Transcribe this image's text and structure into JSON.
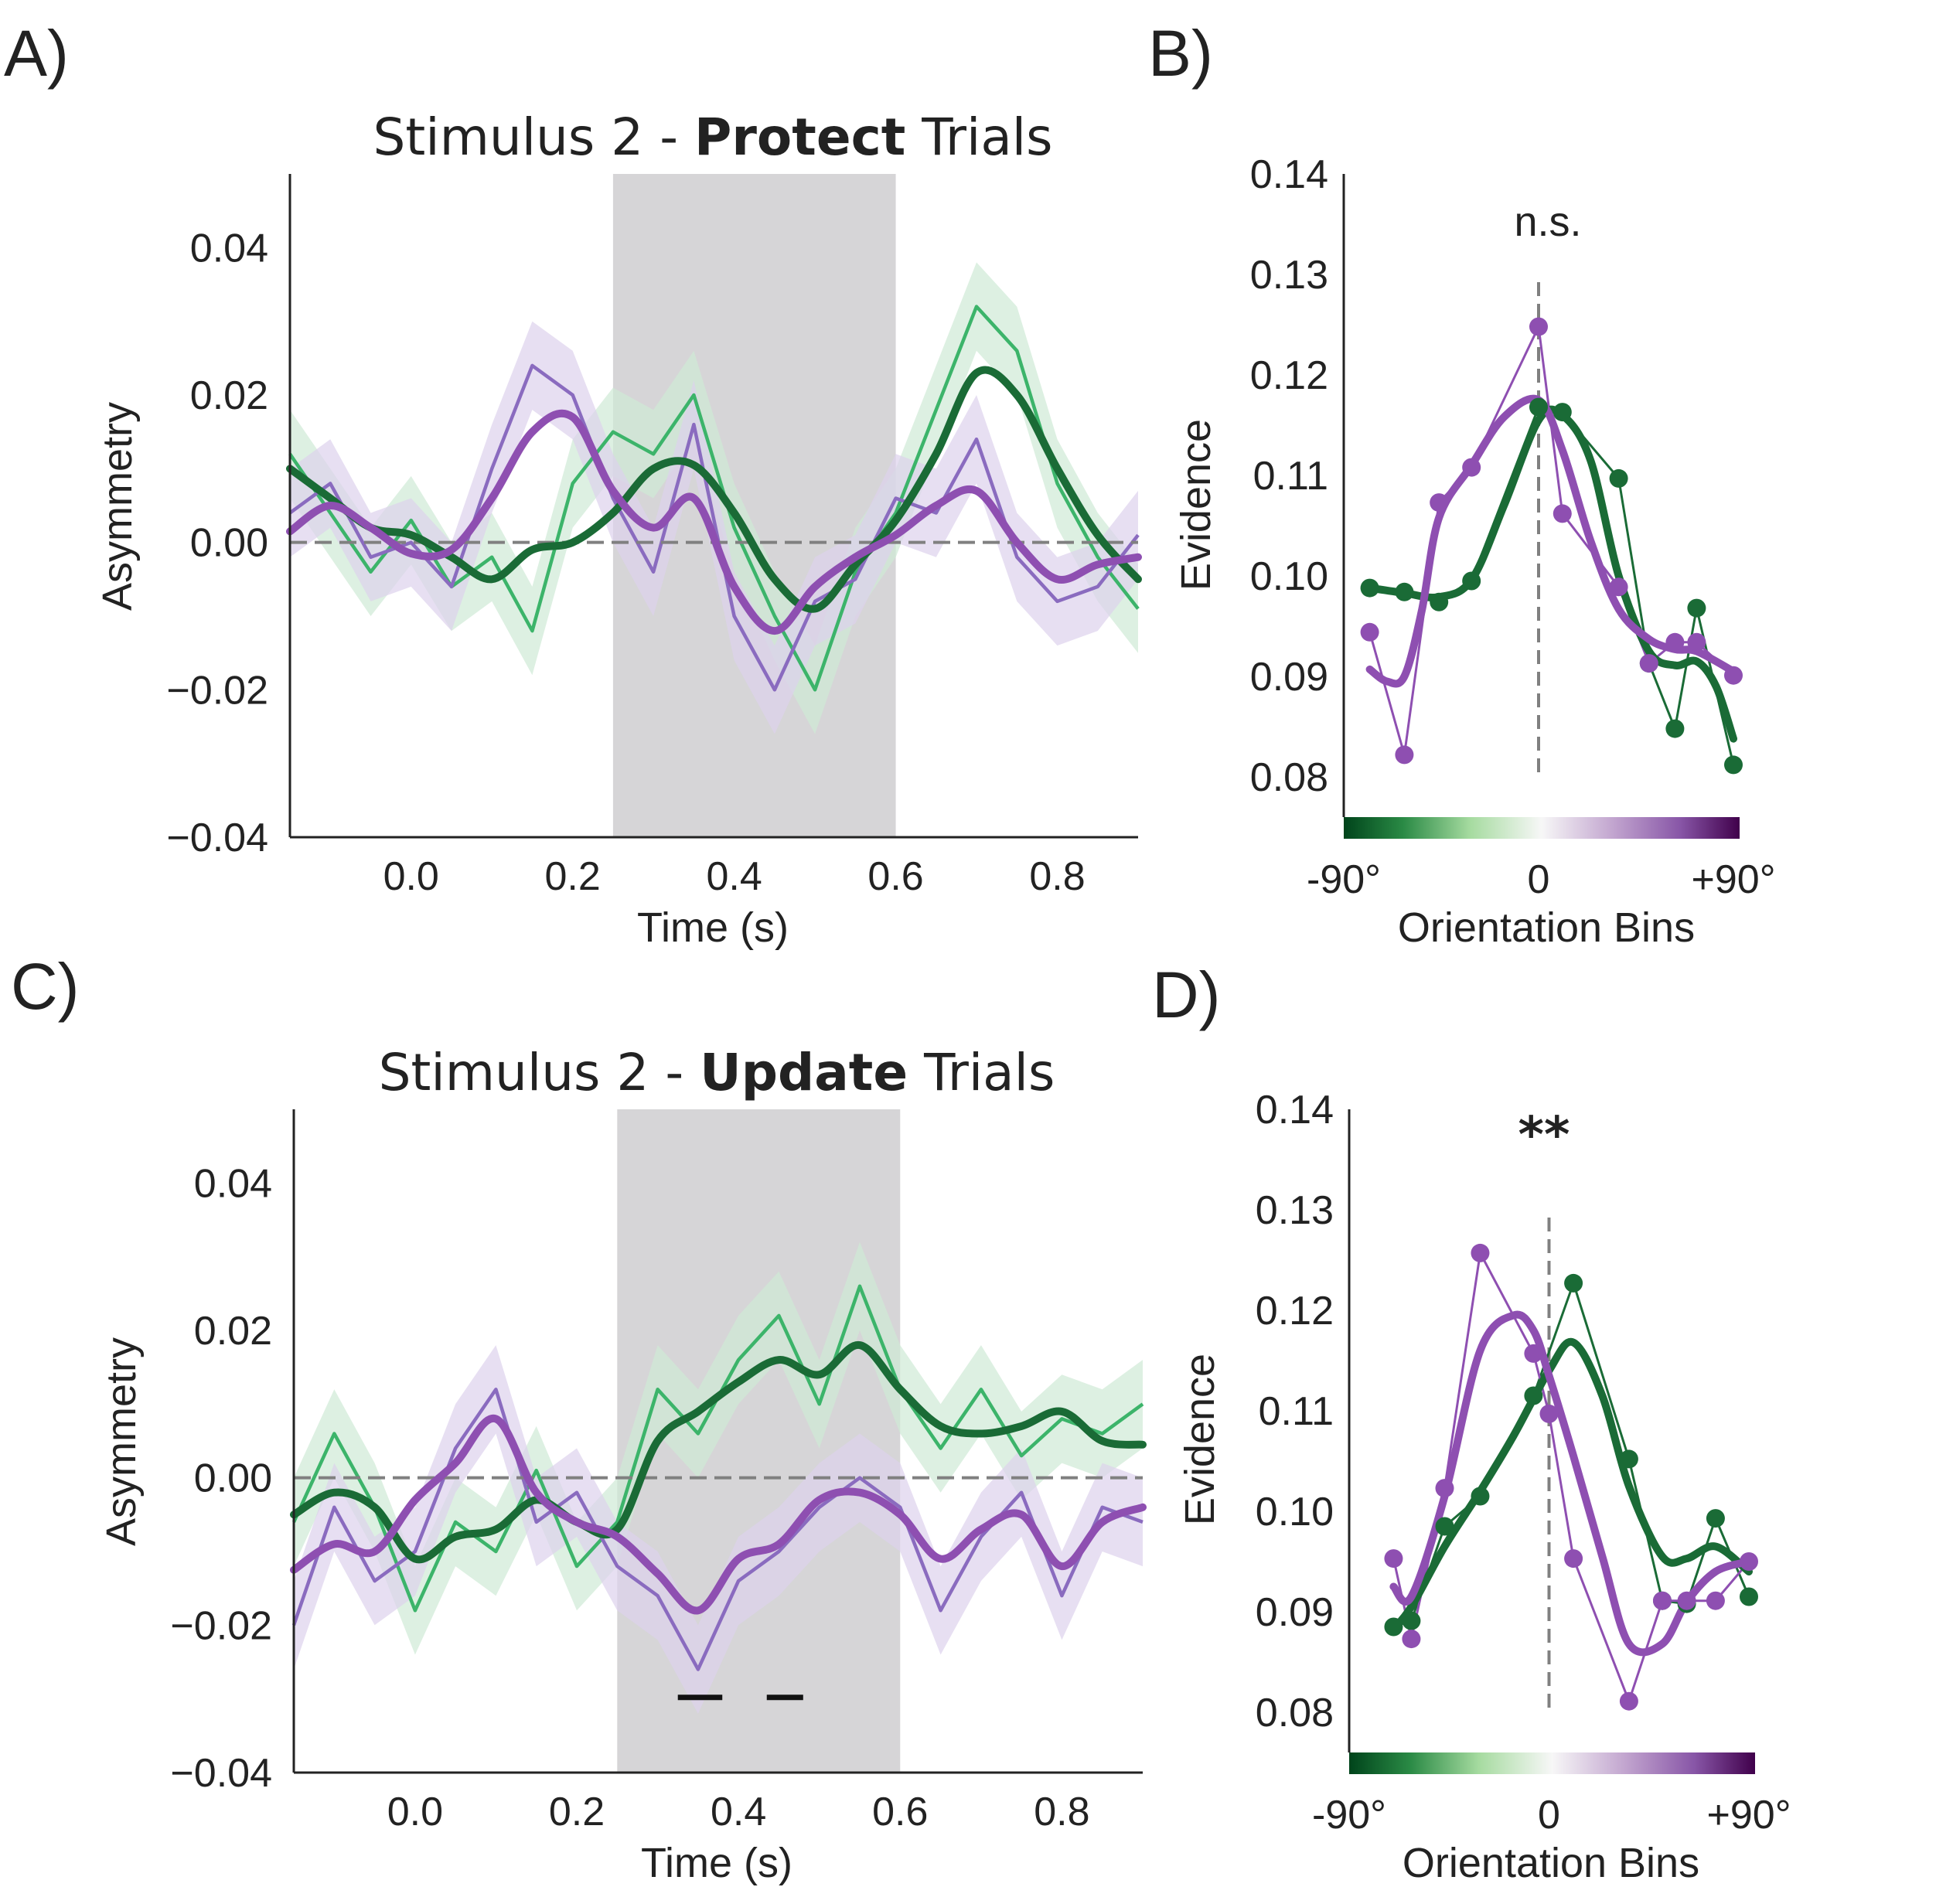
{
  "panels": {
    "A": {
      "letter": "A)"
    },
    "B": {
      "letter": "B)"
    },
    "C": {
      "letter": "C)"
    },
    "D": {
      "letter": "D)"
    }
  },
  "colors": {
    "dark_green": "#1a6b36",
    "light_green": "#3cb46a",
    "green_band": "#cfe9d6",
    "purple": "#8e4fb1",
    "light_purple": "#8a6bbf",
    "purple_band": "#ddd2ec",
    "shade": "#d6d5d7",
    "zero_line": "#808080",
    "axis": "#222222"
  },
  "chart_data": [
    {
      "id": "A",
      "type": "line",
      "title_pre": "Stimulus 2 - ",
      "title_bold": "Protect",
      "title_post": " Trials",
      "xlabel": "Time (s)",
      "ylabel": "Asymmetry",
      "xlim": [
        -0.15,
        0.9
      ],
      "ylim": [
        -0.04,
        0.05
      ],
      "xticks": [
        "0.0",
        "0.2",
        "0.4",
        "0.6",
        "0.8"
      ],
      "yticks": [
        "−0.04",
        "−0.02",
        "0.00",
        "0.02",
        "0.04"
      ],
      "xtick_values": [
        0.0,
        0.2,
        0.4,
        0.6,
        0.8
      ],
      "ytick_values": [
        -0.04,
        -0.02,
        0.0,
        0.02,
        0.04
      ],
      "shaded_interval": [
        0.25,
        0.6
      ],
      "zero_line": 0.0,
      "significance_bars": [],
      "smooth_series": [
        {
          "color_key": "dark_green",
          "x": [
            -0.15,
            -0.1,
            -0.05,
            0.0,
            0.05,
            0.1,
            0.15,
            0.2,
            0.25,
            0.3,
            0.35,
            0.4,
            0.45,
            0.5,
            0.55,
            0.6,
            0.65,
            0.7,
            0.75,
            0.8,
            0.85,
            0.9
          ],
          "y": [
            0.01,
            0.006,
            0.002,
            0.001,
            -0.002,
            -0.005,
            -0.001,
            0.0,
            0.004,
            0.01,
            0.0105,
            0.004,
            -0.005,
            -0.009,
            -0.003,
            0.003,
            0.012,
            0.023,
            0.02,
            0.01,
            0.001,
            -0.005
          ]
        },
        {
          "color_key": "purple",
          "x": [
            -0.15,
            -0.1,
            -0.05,
            0.0,
            0.05,
            0.1,
            0.15,
            0.2,
            0.25,
            0.3,
            0.35,
            0.4,
            0.45,
            0.5,
            0.55,
            0.6,
            0.65,
            0.7,
            0.75,
            0.8,
            0.85,
            0.9
          ],
          "y": [
            0.0015,
            0.005,
            0.002,
            -0.0015,
            -0.001,
            0.006,
            0.015,
            0.017,
            0.007,
            0.002,
            0.006,
            -0.006,
            -0.012,
            -0.006,
            -0.002,
            0.001,
            0.005,
            0.007,
            0.0,
            -0.005,
            -0.003,
            -0.002
          ]
        }
      ],
      "raw_series": [
        {
          "color_key": "light_green",
          "band_key": "green_band",
          "x": [
            -0.15,
            -0.1,
            -0.05,
            0.0,
            0.05,
            0.1,
            0.15,
            0.2,
            0.25,
            0.3,
            0.35,
            0.4,
            0.45,
            0.5,
            0.55,
            0.6,
            0.65,
            0.7,
            0.75,
            0.8,
            0.85,
            0.9
          ],
          "y": [
            0.012,
            0.004,
            -0.004,
            0.003,
            -0.006,
            -0.002,
            -0.012,
            0.008,
            0.015,
            0.012,
            0.02,
            0.002,
            -0.01,
            -0.02,
            -0.004,
            0.004,
            0.018,
            0.032,
            0.026,
            0.008,
            -0.002,
            -0.009
          ]
        },
        {
          "color_key": "light_purple",
          "band_key": "purple_band",
          "x": [
            -0.15,
            -0.1,
            -0.05,
            0.0,
            0.05,
            0.1,
            0.15,
            0.2,
            0.25,
            0.3,
            0.35,
            0.4,
            0.45,
            0.5,
            0.55,
            0.6,
            0.65,
            0.7,
            0.75,
            0.8,
            0.85,
            0.9
          ],
          "y": [
            0.004,
            0.008,
            -0.002,
            0.0,
            -0.006,
            0.01,
            0.024,
            0.02,
            0.006,
            -0.004,
            0.016,
            -0.01,
            -0.02,
            -0.008,
            -0.005,
            0.006,
            0.004,
            0.014,
            -0.002,
            -0.008,
            -0.006,
            0.001
          ]
        }
      ]
    },
    {
      "id": "B",
      "type": "line",
      "xlabel": "Orientation Bins",
      "ylabel": "Evidence",
      "ylim": [
        0.076,
        0.14
      ],
      "yticks": [
        "0.08",
        "0.09",
        "0.10",
        "0.11",
        "0.12",
        "0.13",
        "0.14"
      ],
      "ytick_values": [
        0.08,
        0.09,
        0.1,
        0.11,
        0.12,
        0.13,
        0.14
      ],
      "xtick_labels": [
        "-90°",
        "0",
        "+90°"
      ],
      "xtick_values": [
        -90,
        0,
        90
      ],
      "xlim": [
        -90,
        90
      ],
      "annotation": "n.s.",
      "annotation_bold": false,
      "points": [
        {
          "color_key": "dark_green",
          "x": [
            -78,
            -66,
            -54,
            -42,
            -30,
            0,
            12,
            24,
            36,
            48,
            60,
            72,
            84
          ],
          "y": [
            0.0988,
            0.0984,
            0.0974,
            0.0995,
            0.1168,
            0.1163,
            0.1097,
            0.0913,
            0.0848,
            0.0968,
            0.0937,
            0.0812,
            0.0812
          ]
        },
        {
          "color_key": "purple",
          "x": [
            -78,
            -66,
            -54,
            -42,
            -30,
            0,
            12,
            24,
            36,
            48,
            60,
            72,
            84
          ],
          "y": [
            0.0944,
            0.0822,
            0.1073,
            0.1108,
            0.1248,
            0.1062,
            0.0989,
            0.0913,
            0.0934,
            0.0905,
            0.0905,
            0.0905,
            0.0905
          ]
        }
      ],
      "green_points_x": [
        -78,
        -62,
        -46,
        -31,
        0,
        11,
        37,
        51,
        63,
        73,
        90
      ],
      "green_points_y": [
        0.0988,
        0.0984,
        0.0974,
        0.0995,
        0.1168,
        0.1163,
        0.1097,
        0.0913,
        0.0848,
        0.0968,
        0.0812
      ],
      "purple_points_x": [
        -78,
        -62,
        -46,
        -31,
        0,
        11,
        37,
        51,
        63,
        73,
        90
      ],
      "purple_points_y": [
        0.0944,
        0.0822,
        0.1073,
        0.1108,
        0.1248,
        0.1062,
        0.0989,
        0.0913,
        0.0934,
        0.0934,
        0.0901
      ],
      "green_smooth_x": [
        -78,
        -62,
        -46,
        -31,
        -16,
        0,
        11,
        24,
        37,
        51,
        63,
        73,
        82,
        90
      ],
      "green_smooth_y": [
        0.0988,
        0.0983,
        0.0979,
        0.0996,
        0.107,
        0.1155,
        0.116,
        0.1115,
        0.1,
        0.0925,
        0.0911,
        0.0915,
        0.089,
        0.0838
      ],
      "purple_smooth_x": [
        -78,
        -70,
        -62,
        -54,
        -46,
        -31,
        -16,
        0,
        11,
        24,
        37,
        51,
        63,
        73,
        90
      ],
      "purple_smooth_y": [
        0.0907,
        0.0895,
        0.09,
        0.0965,
        0.1058,
        0.111,
        0.1158,
        0.1175,
        0.1125,
        0.1035,
        0.0967,
        0.0937,
        0.0927,
        0.0925,
        0.0905
      ]
    },
    {
      "id": "C",
      "type": "line",
      "title_pre": "Stimulus 2 - ",
      "title_bold": "Update",
      "title_post": " Trials",
      "xlabel": "Time (s)",
      "ylabel": "Asymmetry",
      "xlim": [
        -0.15,
        0.9
      ],
      "ylim": [
        -0.04,
        0.05
      ],
      "xticks": [
        "0.0",
        "0.2",
        "0.4",
        "0.6",
        "0.8"
      ],
      "yticks": [
        "−0.04",
        "−0.02",
        "0.00",
        "0.02",
        "0.04"
      ],
      "xtick_values": [
        0.0,
        0.2,
        0.4,
        0.6,
        0.8
      ],
      "ytick_values": [
        -0.04,
        -0.02,
        0.0,
        0.02,
        0.04
      ],
      "shaded_interval": [
        0.25,
        0.6
      ],
      "zero_line": 0.0,
      "significance_bars": [
        [
          0.325,
          0.38
        ],
        [
          0.435,
          0.48
        ]
      ],
      "significance_y": -0.0298,
      "smooth_series": [
        {
          "color_key": "dark_green",
          "x": [
            -0.15,
            -0.1,
            -0.05,
            0.0,
            0.05,
            0.1,
            0.15,
            0.2,
            0.25,
            0.3,
            0.35,
            0.4,
            0.45,
            0.5,
            0.55,
            0.6,
            0.65,
            0.7,
            0.75,
            0.8,
            0.85,
            0.9
          ],
          "y": [
            -0.005,
            -0.002,
            -0.004,
            -0.011,
            -0.008,
            -0.007,
            -0.003,
            -0.006,
            -0.007,
            0.005,
            0.009,
            0.013,
            0.016,
            0.014,
            0.018,
            0.012,
            0.007,
            0.006,
            0.007,
            0.009,
            0.005,
            0.0045
          ]
        },
        {
          "color_key": "purple",
          "x": [
            -0.15,
            -0.1,
            -0.05,
            0.0,
            0.05,
            0.1,
            0.15,
            0.2,
            0.25,
            0.3,
            0.35,
            0.4,
            0.45,
            0.5,
            0.55,
            0.6,
            0.65,
            0.7,
            0.75,
            0.8,
            0.85,
            0.9
          ],
          "y": [
            -0.0125,
            -0.009,
            -0.01,
            -0.003,
            0.002,
            0.008,
            -0.002,
            -0.006,
            -0.008,
            -0.013,
            -0.018,
            -0.011,
            -0.009,
            -0.003,
            -0.002,
            -0.005,
            -0.011,
            -0.007,
            -0.005,
            -0.012,
            -0.006,
            -0.004
          ]
        }
      ],
      "raw_series": [
        {
          "color_key": "light_green",
          "band_key": "green_band",
          "x": [
            -0.15,
            -0.1,
            -0.05,
            0.0,
            0.05,
            0.1,
            0.15,
            0.2,
            0.25,
            0.3,
            0.35,
            0.4,
            0.45,
            0.5,
            0.55,
            0.6,
            0.65,
            0.7,
            0.75,
            0.8,
            0.85,
            0.9
          ],
          "y": [
            -0.006,
            0.006,
            -0.004,
            -0.018,
            -0.006,
            -0.01,
            0.001,
            -0.012,
            -0.006,
            0.012,
            0.006,
            0.016,
            0.022,
            0.01,
            0.026,
            0.012,
            0.004,
            0.012,
            0.003,
            0.008,
            0.006,
            0.01
          ]
        },
        {
          "color_key": "light_purple",
          "band_key": "purple_band",
          "x": [
            -0.15,
            -0.1,
            -0.05,
            0.0,
            0.05,
            0.1,
            0.15,
            0.2,
            0.25,
            0.3,
            0.35,
            0.4,
            0.45,
            0.5,
            0.55,
            0.6,
            0.65,
            0.7,
            0.75,
            0.8,
            0.85,
            0.9
          ],
          "y": [
            -0.02,
            -0.004,
            -0.014,
            -0.01,
            0.004,
            0.012,
            -0.006,
            -0.002,
            -0.012,
            -0.016,
            -0.026,
            -0.014,
            -0.01,
            -0.004,
            0.0,
            -0.004,
            -0.018,
            -0.008,
            -0.002,
            -0.016,
            -0.004,
            -0.006
          ]
        }
      ]
    },
    {
      "id": "D",
      "type": "line",
      "xlabel": "Orientation Bins",
      "ylabel": "Evidence",
      "ylim": [
        0.076,
        0.14
      ],
      "yticks": [
        "0.08",
        "0.09",
        "0.10",
        "0.11",
        "0.12",
        "0.13",
        "0.14"
      ],
      "ytick_values": [
        0.08,
        0.09,
        0.1,
        0.11,
        0.12,
        0.13,
        0.14
      ],
      "xtick_labels": [
        "-90°",
        "0",
        "+90°"
      ],
      "xtick_values": [
        -90,
        0,
        90
      ],
      "xlim": [
        -90,
        90
      ],
      "annotation": "**",
      "annotation_bold": true,
      "green_points_x": [
        -70,
        -62,
        -47,
        -31,
        -7,
        11,
        36,
        51,
        62,
        75,
        90
      ],
      "green_points_y": [
        0.0885,
        0.0891,
        0.0985,
        0.1015,
        0.1115,
        0.1227,
        0.1052,
        0.0911,
        0.0908,
        0.0993,
        0.0915
      ],
      "purple_points_x": [
        -70,
        -62,
        -47,
        -31,
        -7,
        0,
        11,
        36,
        51,
        62,
        75,
        90
      ],
      "purple_points_y": [
        0.0953,
        0.0873,
        0.1023,
        0.1257,
        0.1157,
        0.1097,
        0.0953,
        0.0811,
        0.0911,
        0.0911,
        0.0911,
        0.095
      ],
      "green_smooth_x": [
        -70,
        -62,
        -47,
        -31,
        -16,
        0,
        11,
        24,
        36,
        51,
        62,
        75,
        90
      ],
      "green_smooth_y": [
        0.0883,
        0.0905,
        0.0965,
        0.102,
        0.1075,
        0.114,
        0.1168,
        0.1115,
        0.1025,
        0.0955,
        0.0953,
        0.0965,
        0.094
      ],
      "purple_smooth_x": [
        -70,
        -62,
        -47,
        -31,
        -16,
        -7,
        0,
        11,
        24,
        36,
        51,
        62,
        75,
        90
      ],
      "purple_smooth_y": [
        0.0925,
        0.0915,
        0.1015,
        0.116,
        0.1195,
        0.118,
        0.1135,
        0.1055,
        0.0955,
        0.0868,
        0.0868,
        0.091,
        0.094,
        0.095
      ]
    }
  ]
}
